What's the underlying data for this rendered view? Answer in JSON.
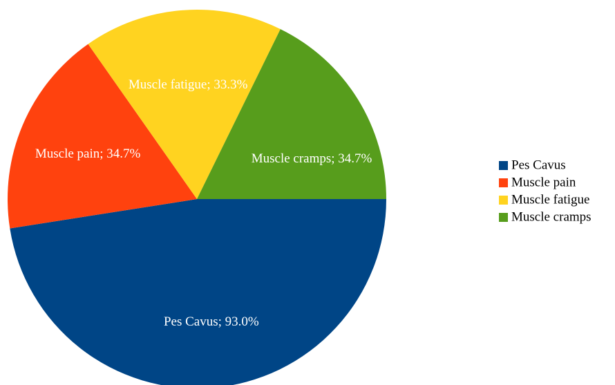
{
  "chart_data": {
    "type": "pie",
    "legend_position": "right",
    "slices": [
      {
        "label": "Pes Cavus",
        "value": 93.0,
        "value_text": "Pes Cavus; 93.0%",
        "color": "#004586"
      },
      {
        "label": "Muscle pain",
        "value": 34.7,
        "value_text": "Muscle pain; 34.7%",
        "color": "#ff420e"
      },
      {
        "label": "Muscle fatigue",
        "value": 33.3,
        "value_text": "Muscle fatigue; 33.3%",
        "color": "#ffd320"
      },
      {
        "label": "Muscle cramps",
        "value": 34.7,
        "value_text": "Muscle cramps; 34.7%",
        "color": "#579d1c"
      }
    ]
  }
}
